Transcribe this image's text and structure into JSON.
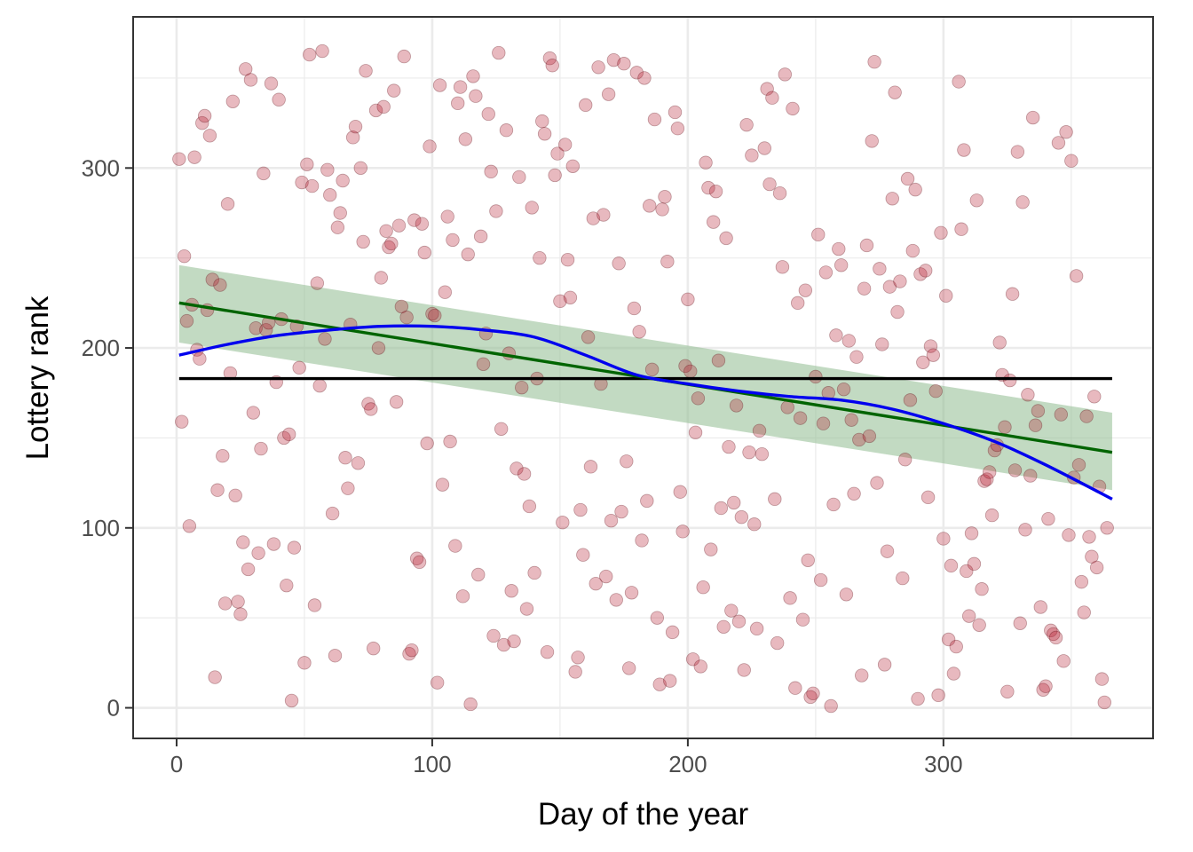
{
  "chart_data": {
    "type": "scatter",
    "title": "",
    "xlabel": "Day of the year",
    "ylabel": "Lottery rank",
    "xlim": [
      -17,
      382
    ],
    "ylim": [
      -17,
      384
    ],
    "x_ticks": [
      0,
      100,
      200,
      300
    ],
    "y_ticks": [
      0,
      100,
      200,
      300
    ],
    "grid": true,
    "theme": "bw",
    "colors": {
      "points": "#b2182b",
      "mean_line": "#000000",
      "linear_fit": "#006400",
      "confidence_band": "#8fbc8f",
      "loess": "#0000ee",
      "grid_major": "#ebebeb",
      "panel_border": "#333333"
    },
    "mean_line": {
      "y": 183,
      "x_range": [
        1,
        366
      ]
    },
    "linear_fit": {
      "x": [
        1,
        366
      ],
      "y": [
        225,
        142
      ],
      "ci_lower": [
        203,
        121
      ],
      "ci_upper": [
        246,
        164
      ]
    },
    "loess": {
      "x": [
        1,
        20,
        40,
        60,
        80,
        100,
        120,
        140,
        160,
        180,
        200,
        220,
        240,
        260,
        280,
        300,
        320,
        340,
        366
      ],
      "y": [
        196,
        202,
        207,
        210,
        212,
        212,
        210,
        206,
        196,
        185,
        180,
        176,
        173,
        171,
        166,
        158,
        148,
        135,
        116
      ]
    },
    "points": [
      [
        1,
        305
      ],
      [
        2,
        159
      ],
      [
        3,
        251
      ],
      [
        4,
        215
      ],
      [
        5,
        101
      ],
      [
        6,
        224
      ],
      [
        7,
        306
      ],
      [
        8,
        199
      ],
      [
        9,
        194
      ],
      [
        10,
        325
      ],
      [
        11,
        329
      ],
      [
        12,
        221
      ],
      [
        13,
        318
      ],
      [
        14,
        238
      ],
      [
        15,
        17
      ],
      [
        16,
        121
      ],
      [
        17,
        235
      ],
      [
        18,
        140
      ],
      [
        19,
        58
      ],
      [
        20,
        280
      ],
      [
        21,
        186
      ],
      [
        22,
        337
      ],
      [
        23,
        118
      ],
      [
        24,
        59
      ],
      [
        25,
        52
      ],
      [
        26,
        92
      ],
      [
        27,
        355
      ],
      [
        28,
        77
      ],
      [
        29,
        349
      ],
      [
        30,
        164
      ],
      [
        31,
        211
      ],
      [
        32,
        86
      ],
      [
        33,
        144
      ],
      [
        34,
        297
      ],
      [
        35,
        210
      ],
      [
        36,
        214
      ],
      [
        37,
        347
      ],
      [
        38,
        91
      ],
      [
        39,
        181
      ],
      [
        40,
        338
      ],
      [
        41,
        216
      ],
      [
        42,
        150
      ],
      [
        43,
        68
      ],
      [
        44,
        152
      ],
      [
        45,
        4
      ],
      [
        46,
        89
      ],
      [
        47,
        212
      ],
      [
        48,
        189
      ],
      [
        49,
        292
      ],
      [
        50,
        25
      ],
      [
        51,
        302
      ],
      [
        52,
        363
      ],
      [
        53,
        290
      ],
      [
        54,
        57
      ],
      [
        55,
        236
      ],
      [
        56,
        179
      ],
      [
        57,
        365
      ],
      [
        58,
        205
      ],
      [
        59,
        299
      ],
      [
        60,
        285
      ],
      [
        61,
        108
      ],
      [
        62,
        29
      ],
      [
        63,
        267
      ],
      [
        64,
        275
      ],
      [
        65,
        293
      ],
      [
        66,
        139
      ],
      [
        67,
        122
      ],
      [
        68,
        213
      ],
      [
        69,
        317
      ],
      [
        70,
        323
      ],
      [
        71,
        136
      ],
      [
        72,
        300
      ],
      [
        73,
        259
      ],
      [
        74,
        354
      ],
      [
        75,
        169
      ],
      [
        76,
        166
      ],
      [
        77,
        33
      ],
      [
        78,
        332
      ],
      [
        79,
        200
      ],
      [
        80,
        239
      ],
      [
        81,
        334
      ],
      [
        82,
        265
      ],
      [
        83,
        256
      ],
      [
        84,
        258
      ],
      [
        85,
        343
      ],
      [
        86,
        170
      ],
      [
        87,
        268
      ],
      [
        88,
        223
      ],
      [
        89,
        362
      ],
      [
        90,
        217
      ],
      [
        91,
        30
      ],
      [
        92,
        32
      ],
      [
        93,
        271
      ],
      [
        94,
        83
      ],
      [
        95,
        81
      ],
      [
        96,
        269
      ],
      [
        97,
        253
      ],
      [
        98,
        147
      ],
      [
        99,
        312
      ],
      [
        100,
        219
      ],
      [
        101,
        218
      ],
      [
        102,
        14
      ],
      [
        103,
        346
      ],
      [
        104,
        124
      ],
      [
        105,
        231
      ],
      [
        106,
        273
      ],
      [
        107,
        148
      ],
      [
        108,
        260
      ],
      [
        109,
        90
      ],
      [
        110,
        336
      ],
      [
        111,
        345
      ],
      [
        112,
        62
      ],
      [
        113,
        316
      ],
      [
        114,
        252
      ],
      [
        115,
        2
      ],
      [
        116,
        351
      ],
      [
        117,
        340
      ],
      [
        118,
        74
      ],
      [
        119,
        262
      ],
      [
        120,
        191
      ],
      [
        121,
        208
      ],
      [
        122,
        330
      ],
      [
        123,
        298
      ],
      [
        124,
        40
      ],
      [
        125,
        276
      ],
      [
        126,
        364
      ],
      [
        127,
        155
      ],
      [
        128,
        35
      ],
      [
        129,
        321
      ],
      [
        130,
        197
      ],
      [
        131,
        65
      ],
      [
        132,
        37
      ],
      [
        133,
        133
      ],
      [
        134,
        295
      ],
      [
        135,
        178
      ],
      [
        136,
        130
      ],
      [
        137,
        55
      ],
      [
        138,
        112
      ],
      [
        139,
        278
      ],
      [
        140,
        75
      ],
      [
        141,
        183
      ],
      [
        142,
        250
      ],
      [
        143,
        326
      ],
      [
        144,
        319
      ],
      [
        145,
        31
      ],
      [
        146,
        361
      ],
      [
        147,
        357
      ],
      [
        148,
        296
      ],
      [
        149,
        308
      ],
      [
        150,
        226
      ],
      [
        151,
        103
      ],
      [
        152,
        313
      ],
      [
        153,
        249
      ],
      [
        154,
        228
      ],
      [
        155,
        301
      ],
      [
        156,
        20
      ],
      [
        157,
        28
      ],
      [
        158,
        110
      ],
      [
        159,
        85
      ],
      [
        160,
        335
      ],
      [
        161,
        206
      ],
      [
        162,
        134
      ],
      [
        163,
        272
      ],
      [
        164,
        69
      ],
      [
        165,
        356
      ],
      [
        166,
        180
      ],
      [
        167,
        274
      ],
      [
        168,
        73
      ],
      [
        169,
        341
      ],
      [
        170,
        104
      ],
      [
        171,
        360
      ],
      [
        172,
        60
      ],
      [
        173,
        247
      ],
      [
        174,
        109
      ],
      [
        175,
        358
      ],
      [
        176,
        137
      ],
      [
        177,
        22
      ],
      [
        178,
        64
      ],
      [
        179,
        222
      ],
      [
        180,
        353
      ],
      [
        181,
        209
      ],
      [
        182,
        93
      ],
      [
        183,
        350
      ],
      [
        184,
        115
      ],
      [
        185,
        279
      ],
      [
        186,
        188
      ],
      [
        187,
        327
      ],
      [
        188,
        50
      ],
      [
        189,
        13
      ],
      [
        190,
        277
      ],
      [
        191,
        284
      ],
      [
        192,
        248
      ],
      [
        193,
        15
      ],
      [
        194,
        42
      ],
      [
        195,
        331
      ],
      [
        196,
        322
      ],
      [
        197,
        120
      ],
      [
        198,
        98
      ],
      [
        199,
        190
      ],
      [
        200,
        227
      ],
      [
        201,
        187
      ],
      [
        202,
        27
      ],
      [
        203,
        153
      ],
      [
        204,
        172
      ],
      [
        205,
        23
      ],
      [
        206,
        67
      ],
      [
        207,
        303
      ],
      [
        208,
        289
      ],
      [
        209,
        88
      ],
      [
        210,
        270
      ],
      [
        211,
        287
      ],
      [
        212,
        193
      ],
      [
        213,
        111
      ],
      [
        214,
        45
      ],
      [
        215,
        261
      ],
      [
        216,
        145
      ],
      [
        217,
        54
      ],
      [
        218,
        114
      ],
      [
        219,
        168
      ],
      [
        220,
        48
      ],
      [
        221,
        106
      ],
      [
        222,
        21
      ],
      [
        223,
        324
      ],
      [
        224,
        142
      ],
      [
        225,
        307
      ],
      [
        226,
        102
      ],
      [
        227,
        44
      ],
      [
        228,
        154
      ],
      [
        229,
        141
      ],
      [
        230,
        311
      ],
      [
        231,
        344
      ],
      [
        232,
        291
      ],
      [
        233,
        339
      ],
      [
        234,
        116
      ],
      [
        235,
        36
      ],
      [
        236,
        286
      ],
      [
        237,
        245
      ],
      [
        238,
        352
      ],
      [
        239,
        167
      ],
      [
        240,
        61
      ],
      [
        241,
        333
      ],
      [
        242,
        11
      ],
      [
        243,
        225
      ],
      [
        244,
        161
      ],
      [
        245,
        49
      ],
      [
        246,
        232
      ],
      [
        247,
        82
      ],
      [
        248,
        6
      ],
      [
        249,
        8
      ],
      [
        250,
        184
      ],
      [
        251,
        263
      ],
      [
        252,
        71
      ],
      [
        253,
        158
      ],
      [
        254,
        242
      ],
      [
        255,
        175
      ],
      [
        256,
        1
      ],
      [
        257,
        113
      ],
      [
        258,
        207
      ],
      [
        259,
        255
      ],
      [
        260,
        246
      ],
      [
        261,
        177
      ],
      [
        262,
        63
      ],
      [
        263,
        204
      ],
      [
        264,
        160
      ],
      [
        265,
        119
      ],
      [
        266,
        195
      ],
      [
        267,
        149
      ],
      [
        268,
        18
      ],
      [
        269,
        233
      ],
      [
        270,
        257
      ],
      [
        271,
        151
      ],
      [
        272,
        315
      ],
      [
        273,
        359
      ],
      [
        274,
        125
      ],
      [
        275,
        244
      ],
      [
        276,
        202
      ],
      [
        277,
        24
      ],
      [
        278,
        87
      ],
      [
        279,
        234
      ],
      [
        280,
        283
      ],
      [
        281,
        342
      ],
      [
        282,
        220
      ],
      [
        283,
        237
      ],
      [
        284,
        72
      ],
      [
        285,
        138
      ],
      [
        286,
        294
      ],
      [
        287,
        171
      ],
      [
        288,
        254
      ],
      [
        289,
        288
      ],
      [
        290,
        5
      ],
      [
        291,
        241
      ],
      [
        292,
        192
      ],
      [
        293,
        243
      ],
      [
        294,
        117
      ],
      [
        295,
        201
      ],
      [
        296,
        196
      ],
      [
        297,
        176
      ],
      [
        298,
        7
      ],
      [
        299,
        264
      ],
      [
        300,
        94
      ],
      [
        301,
        229
      ],
      [
        302,
        38
      ],
      [
        303,
        79
      ],
      [
        304,
        19
      ],
      [
        305,
        34
      ],
      [
        306,
        348
      ],
      [
        307,
        266
      ],
      [
        308,
        310
      ],
      [
        309,
        76
      ],
      [
        310,
        51
      ],
      [
        311,
        97
      ],
      [
        312,
        80
      ],
      [
        313,
        282
      ],
      [
        314,
        46
      ],
      [
        315,
        66
      ],
      [
        316,
        126
      ],
      [
        317,
        127
      ],
      [
        318,
        131
      ],
      [
        319,
        107
      ],
      [
        320,
        143
      ],
      [
        321,
        146
      ],
      [
        322,
        203
      ],
      [
        323,
        185
      ],
      [
        324,
        156
      ],
      [
        325,
        9
      ],
      [
        326,
        182
      ],
      [
        327,
        230
      ],
      [
        328,
        132
      ],
      [
        329,
        309
      ],
      [
        330,
        47
      ],
      [
        331,
        281
      ],
      [
        332,
        99
      ],
      [
        333,
        174
      ],
      [
        334,
        129
      ],
      [
        335,
        328
      ],
      [
        336,
        157
      ],
      [
        337,
        165
      ],
      [
        338,
        56
      ],
      [
        339,
        10
      ],
      [
        340,
        12
      ],
      [
        341,
        105
      ],
      [
        342,
        43
      ],
      [
        343,
        41
      ],
      [
        344,
        39
      ],
      [
        345,
        314
      ],
      [
        346,
        163
      ],
      [
        347,
        26
      ],
      [
        348,
        320
      ],
      [
        349,
        96
      ],
      [
        350,
        304
      ],
      [
        351,
        128
      ],
      [
        352,
        240
      ],
      [
        353,
        135
      ],
      [
        354,
        70
      ],
      [
        355,
        53
      ],
      [
        356,
        162
      ],
      [
        357,
        95
      ],
      [
        358,
        84
      ],
      [
        359,
        173
      ],
      [
        360,
        78
      ],
      [
        361,
        123
      ],
      [
        362,
        16
      ],
      [
        363,
        3
      ],
      [
        364,
        100
      ]
    ]
  }
}
